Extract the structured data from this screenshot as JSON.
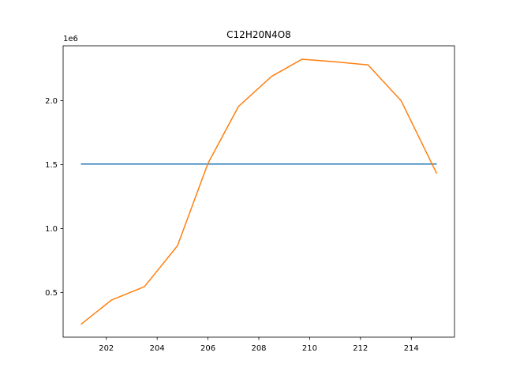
{
  "chart_data": {
    "type": "line",
    "title": "C12H20N4O8",
    "xlabel": "",
    "ylabel": "",
    "y_offset_label": "1e6",
    "xlim": [
      200.3,
      215.7
    ],
    "ylim": [
      0.15,
      2.43
    ],
    "xticks": [
      202,
      204,
      206,
      208,
      210,
      212,
      214
    ],
    "yticks": [
      0.5,
      1.0,
      1.5,
      2.0
    ],
    "ytick_labels": [
      "0.5",
      "1.0",
      "1.5",
      "2.0"
    ],
    "grid": false,
    "series": [
      {
        "color": "#1f77b4",
        "x": [
          201.0,
          215.0
        ],
        "y": [
          1.505,
          1.505
        ]
      },
      {
        "color": "#ff7f0e",
        "x": [
          201.0,
          202.2,
          203.5,
          204.8,
          206.0,
          207.2,
          208.5,
          209.7,
          211.0,
          212.3,
          213.6,
          215.0
        ],
        "y": [
          0.25,
          0.44,
          0.545,
          0.865,
          1.51,
          1.955,
          2.19,
          2.325,
          2.305,
          2.28,
          2.0,
          1.43
        ]
      }
    ]
  }
}
